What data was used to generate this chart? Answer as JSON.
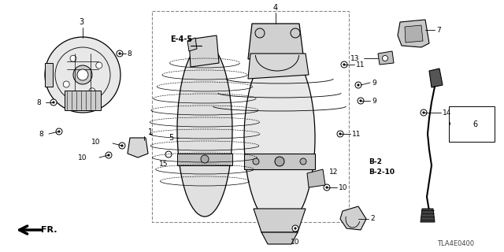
{
  "bg_color": "#ffffff",
  "diagram_code": "TLA4E0400",
  "fr_label": "FR.",
  "figsize": [
    6.4,
    3.2
  ],
  "dpi": 100
}
